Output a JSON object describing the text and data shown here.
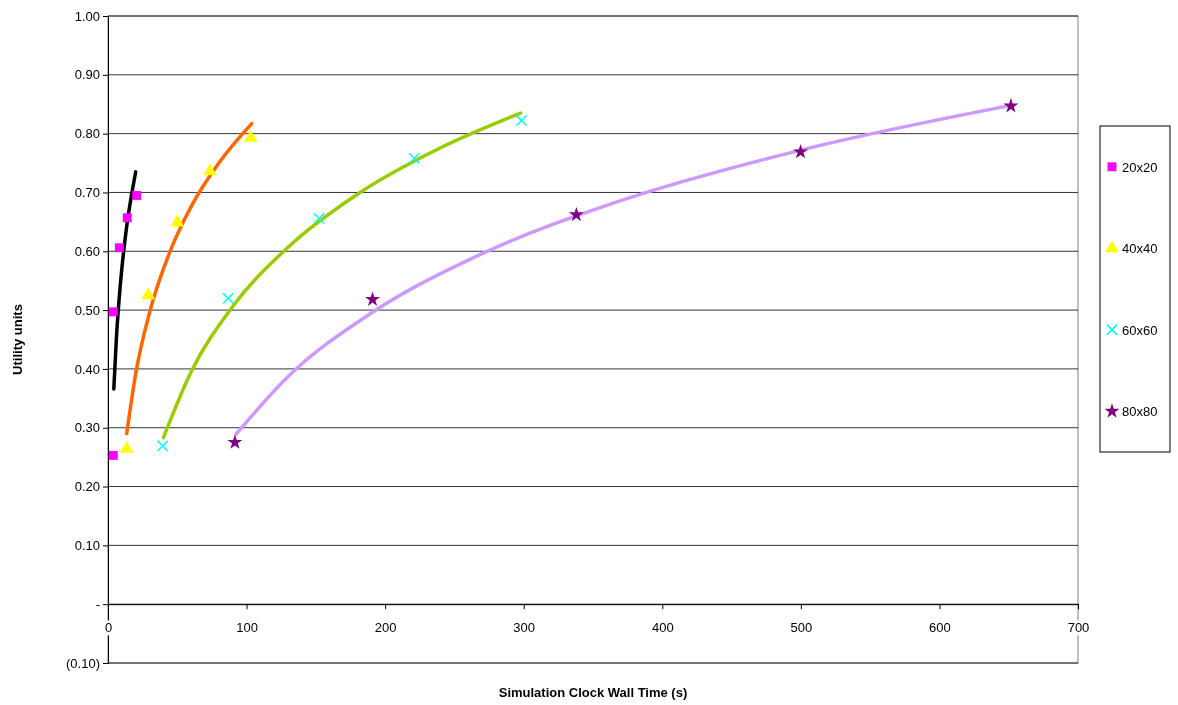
{
  "chart_data": {
    "type": "scatter",
    "xlabel": "Simulation Clock Wall Time (s)",
    "ylabel": "Utility units",
    "xlim": [
      0,
      700
    ],
    "xticks": [
      0,
      100,
      200,
      300,
      400,
      500,
      600,
      700
    ],
    "ylim": [
      -0.1,
      1.0
    ],
    "yticks": [
      {
        "value": -0.1,
        "label": "(0.10)"
      },
      {
        "value": 0,
        "label": "-"
      },
      {
        "value": 0.1,
        "label": "0.10"
      },
      {
        "value": 0.2,
        "label": "0.20"
      },
      {
        "value": 0.3,
        "label": "0.30"
      },
      {
        "value": 0.4,
        "label": "0.40"
      },
      {
        "value": 0.5,
        "label": "0.50"
      },
      {
        "value": 0.6,
        "label": "0.60"
      },
      {
        "value": 0.7,
        "label": "0.70"
      },
      {
        "value": 0.8,
        "label": "0.80"
      },
      {
        "value": 0.9,
        "label": "0.90"
      },
      {
        "value": 1.0,
        "label": "1.00"
      }
    ],
    "grid": "y",
    "legend": "right",
    "series": [
      {
        "name": "20x20",
        "color": "#ff00ff",
        "marker": "square",
        "x": [
          3.8,
          3.8,
          8.2,
          13.9,
          20.7
        ],
        "values": [
          0.253,
          0.497,
          0.606,
          0.657,
          0.695
        ]
      },
      {
        "name": "40x40",
        "color": "#ffff00",
        "marker": "triangle",
        "x": [
          13.5,
          29,
          50,
          73.6,
          103
        ],
        "values": [
          0.264,
          0.525,
          0.649,
          0.736,
          0.793
        ]
      },
      {
        "name": "60x60",
        "color": "#00ffff",
        "marker": "cross",
        "x": [
          39.5,
          86.8,
          152.3,
          221,
          298.4
        ],
        "values": [
          0.269,
          0.52,
          0.656,
          0.758,
          0.822
        ]
      },
      {
        "name": "80x80",
        "color": "#800080",
        "marker": "star",
        "x": [
          91.6,
          190.9,
          338,
          499.8,
          651.6
        ],
        "values": [
          0.275,
          0.518,
          0.662,
          0.769,
          0.847
        ]
      },
      {
        "type": "line",
        "color": "#000000",
        "x": [
          4.2,
          6,
          8,
          10,
          12,
          14,
          17,
          20
        ],
        "values": [
          0.366,
          0.45,
          0.518,
          0.571,
          0.614,
          0.651,
          0.696,
          0.735
        ]
      },
      {
        "type": "line",
        "color": "#ff6600",
        "x": [
          13.5,
          20,
          30,
          45,
          60,
          80,
          103.7
        ],
        "values": [
          0.29,
          0.392,
          0.496,
          0.601,
          0.676,
          0.75,
          0.817
        ]
      },
      {
        "type": "line",
        "color": "#99cc00",
        "x": [
          40,
          60,
          90,
          130,
          180,
          240,
          297.7
        ],
        "values": [
          0.283,
          0.395,
          0.506,
          0.607,
          0.697,
          0.776,
          0.835
        ]
      },
      {
        "type": "line",
        "color": "#cc99ff",
        "x": [
          92.4,
          130,
          190,
          270,
          370,
          500,
          651.6
        ],
        "values": [
          0.289,
          0.387,
          0.495,
          0.596,
          0.686,
          0.772,
          0.848
        ]
      }
    ]
  }
}
